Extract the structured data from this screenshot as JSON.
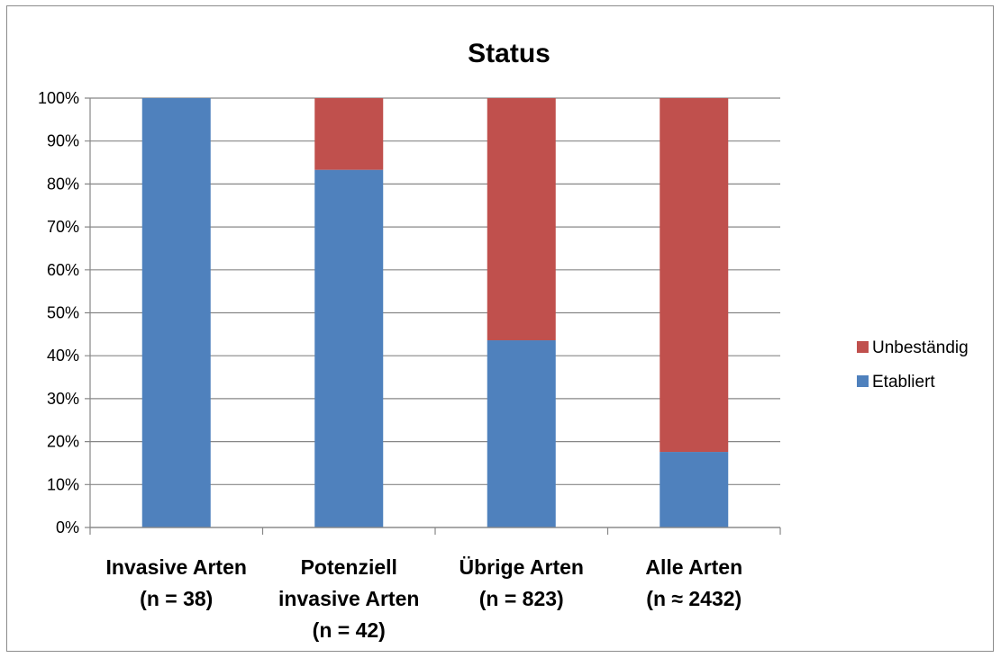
{
  "chart_data": {
    "type": "bar",
    "stacked": "percent",
    "title": "Status",
    "xlabel": "",
    "ylabel": "",
    "ylim": [
      0,
      100
    ],
    "y_ticks": [
      "0%",
      "10%",
      "20%",
      "30%",
      "40%",
      "50%",
      "60%",
      "70%",
      "80%",
      "90%",
      "100%"
    ],
    "grid": true,
    "legend_position": "right",
    "categories": [
      [
        "Invasive Arten",
        "(n = 38)"
      ],
      [
        "Potenziell",
        "invasive Arten",
        "(n = 42)"
      ],
      [
        "Übrige Arten",
        "(n = 823)"
      ],
      [
        "Alle Arten",
        "(n ≈ 2432)"
      ]
    ],
    "series": [
      {
        "name": "Etabliert",
        "color": "#4F81BD",
        "values": [
          100,
          83.3,
          43.6,
          17.6
        ]
      },
      {
        "name": "Unbeständig",
        "color": "#C0504D",
        "values": [
          0,
          16.7,
          56.4,
          82.4
        ]
      }
    ],
    "legend_order": [
      "Unbeständig",
      "Etabliert"
    ]
  }
}
